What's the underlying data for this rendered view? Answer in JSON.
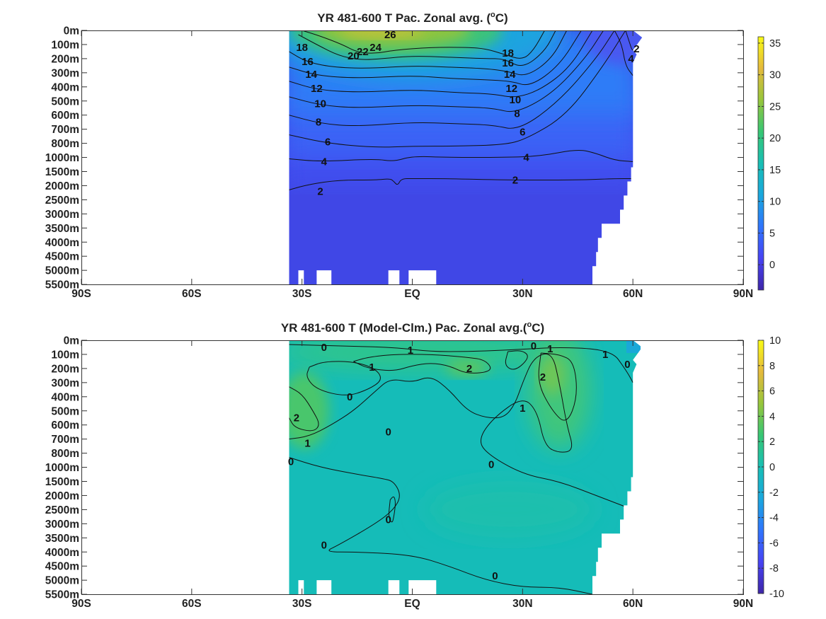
{
  "chart_data": [
    {
      "type": "heatmap",
      "title_main": "YR 481-600 T Pac. Zonal avg. (",
      "title_sup": "o",
      "title_end": "C)",
      "x_ticks": [
        "90S",
        "60S",
        "30S",
        "EQ",
        "30N",
        "60N",
        "90N"
      ],
      "x_values": [
        -90,
        -60,
        -30,
        0,
        30,
        60,
        90
      ],
      "y_ticks": [
        "0m",
        "100m",
        "200m",
        "300m",
        "400m",
        "500m",
        "600m",
        "700m",
        "800m",
        "1000m",
        "1500m",
        "2000m",
        "2500m",
        "3000m",
        "3500m",
        "4000m",
        "4500m",
        "5000m",
        "5500m"
      ],
      "colorbar": {
        "min": -4,
        "max": 36,
        "ticks": [
          "35",
          "30",
          "25",
          "20",
          "15",
          "10",
          "5",
          "0"
        ],
        "tick_values": [
          35,
          30,
          25,
          20,
          15,
          10,
          5,
          0
        ]
      },
      "contour_labels": [
        {
          "text": "26",
          "lat": -6,
          "level": 0.3
        },
        {
          "text": "24",
          "lat": -10,
          "level": 1.2
        },
        {
          "text": "22",
          "lat": -13.5,
          "level": 1.5
        },
        {
          "text": "20",
          "lat": -16,
          "level": 1.8
        },
        {
          "text": "18",
          "lat": -30,
          "level": 1.2
        },
        {
          "text": "16",
          "lat": -28.5,
          "level": 2.2
        },
        {
          "text": "14",
          "lat": -27.5,
          "level": 3.1
        },
        {
          "text": "12",
          "lat": -26,
          "level": 4.1
        },
        {
          "text": "10",
          "lat": -25,
          "level": 5.2
        },
        {
          "text": "8",
          "lat": -25.5,
          "level": 6.5
        },
        {
          "text": "6",
          "lat": -23,
          "level": 7.9
        },
        {
          "text": "4",
          "lat": -24,
          "level": 9.3
        },
        {
          "text": "2",
          "lat": -25,
          "level": 11.4
        },
        {
          "text": "18",
          "lat": 26,
          "level": 1.6
        },
        {
          "text": "16",
          "lat": 26,
          "level": 2.3
        },
        {
          "text": "14",
          "lat": 26.5,
          "level": 3.1
        },
        {
          "text": "12",
          "lat": 27,
          "level": 4.1
        },
        {
          "text": "10",
          "lat": 28,
          "level": 4.9
        },
        {
          "text": "8",
          "lat": 28.5,
          "level": 5.9
        },
        {
          "text": "6",
          "lat": 30,
          "level": 7.2
        },
        {
          "text": "4",
          "lat": 31,
          "level": 9.0
        },
        {
          "text": "2",
          "lat": 28,
          "level": 10.6
        },
        {
          "text": "2",
          "lat": 61,
          "level": 1.3
        },
        {
          "text": "4",
          "lat": 59.5,
          "level": 2.0
        }
      ]
    },
    {
      "type": "heatmap",
      "title_main": "YR 481-600 T (Model-Clm.) Pac. Zonal avg.(",
      "title_sup": "o",
      "title_end": "C)",
      "x_ticks": [
        "90S",
        "60S",
        "30S",
        "EQ",
        "30N",
        "60N",
        "90N"
      ],
      "x_values": [
        -90,
        -60,
        -30,
        0,
        30,
        60,
        90
      ],
      "y_ticks": [
        "0m",
        "100m",
        "200m",
        "300m",
        "400m",
        "500m",
        "600m",
        "700m",
        "800m",
        "1000m",
        "1500m",
        "2000m",
        "2500m",
        "3000m",
        "3500m",
        "4000m",
        "4500m",
        "5000m",
        "5500m"
      ],
      "colorbar": {
        "min": -10,
        "max": 10,
        "ticks": [
          "10",
          "8",
          "6",
          "4",
          "2",
          "0",
          "-2",
          "-4",
          "-6",
          "-8",
          "-10"
        ],
        "tick_values": [
          10,
          8,
          6,
          4,
          2,
          0,
          -2,
          -4,
          -6,
          -8,
          -10
        ]
      },
      "contour_labels": [
        {
          "text": "0",
          "lat": -24,
          "level": 0.5
        },
        {
          "text": "1",
          "lat": -0.5,
          "level": 0.7
        },
        {
          "text": "1",
          "lat": -11,
          "level": 1.9
        },
        {
          "text": "2",
          "lat": 15.5,
          "level": 2.0
        },
        {
          "text": "0",
          "lat": 33,
          "level": 0.4
        },
        {
          "text": "1",
          "lat": 37.5,
          "level": 0.6
        },
        {
          "text": "2",
          "lat": 35.5,
          "level": 2.6
        },
        {
          "text": "1",
          "lat": 52.5,
          "level": 1.0
        },
        {
          "text": "0",
          "lat": 58.5,
          "level": 1.7
        },
        {
          "text": "0",
          "lat": -17,
          "level": 4.0
        },
        {
          "text": "2",
          "lat": -31.5,
          "level": 5.5
        },
        {
          "text": "1",
          "lat": -28.5,
          "level": 7.3
        },
        {
          "text": "0",
          "lat": -33,
          "level": 8.6
        },
        {
          "text": "0",
          "lat": -6.5,
          "level": 6.5
        },
        {
          "text": "1",
          "lat": 30,
          "level": 4.8
        },
        {
          "text": "0",
          "lat": 21.5,
          "level": 8.8
        },
        {
          "text": "0",
          "lat": -6.5,
          "level": 12.7
        },
        {
          "text": "0",
          "lat": -24,
          "level": 14.5
        },
        {
          "text": "0",
          "lat": 22.5,
          "level": 16.7
        }
      ]
    }
  ]
}
